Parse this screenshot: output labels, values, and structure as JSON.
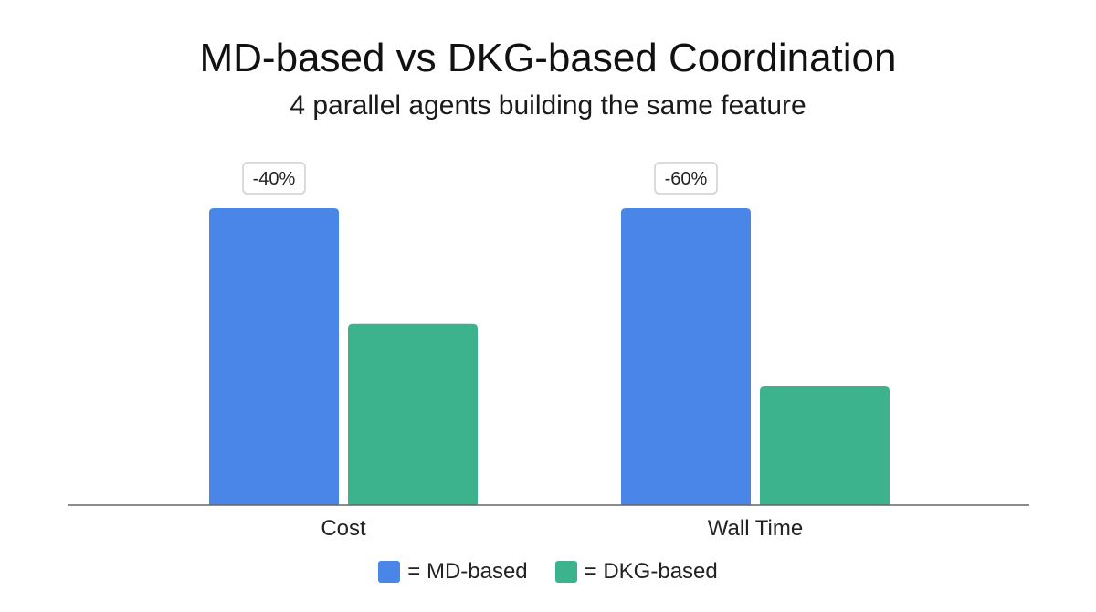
{
  "chart_data": {
    "type": "bar",
    "title": "MD-based vs DKG-based Coordination",
    "subtitle": "4 parallel agents building the same feature",
    "categories": [
      "Cost",
      "Wall Time"
    ],
    "series": [
      {
        "name": "MD-based",
        "legend_label": "= MD-based",
        "color": "#4a86e8",
        "values": [
          100,
          100
        ]
      },
      {
        "name": "DKG-based",
        "legend_label": "= DKG-based",
        "color": "#3cb38c",
        "values": [
          61,
          40
        ]
      }
    ],
    "annotations": [
      "-40%",
      "-60%"
    ],
    "xlabel": "",
    "ylabel": "",
    "ylim": [
      0,
      100
    ],
    "grid": false,
    "legend_position": "bottom-center"
  }
}
